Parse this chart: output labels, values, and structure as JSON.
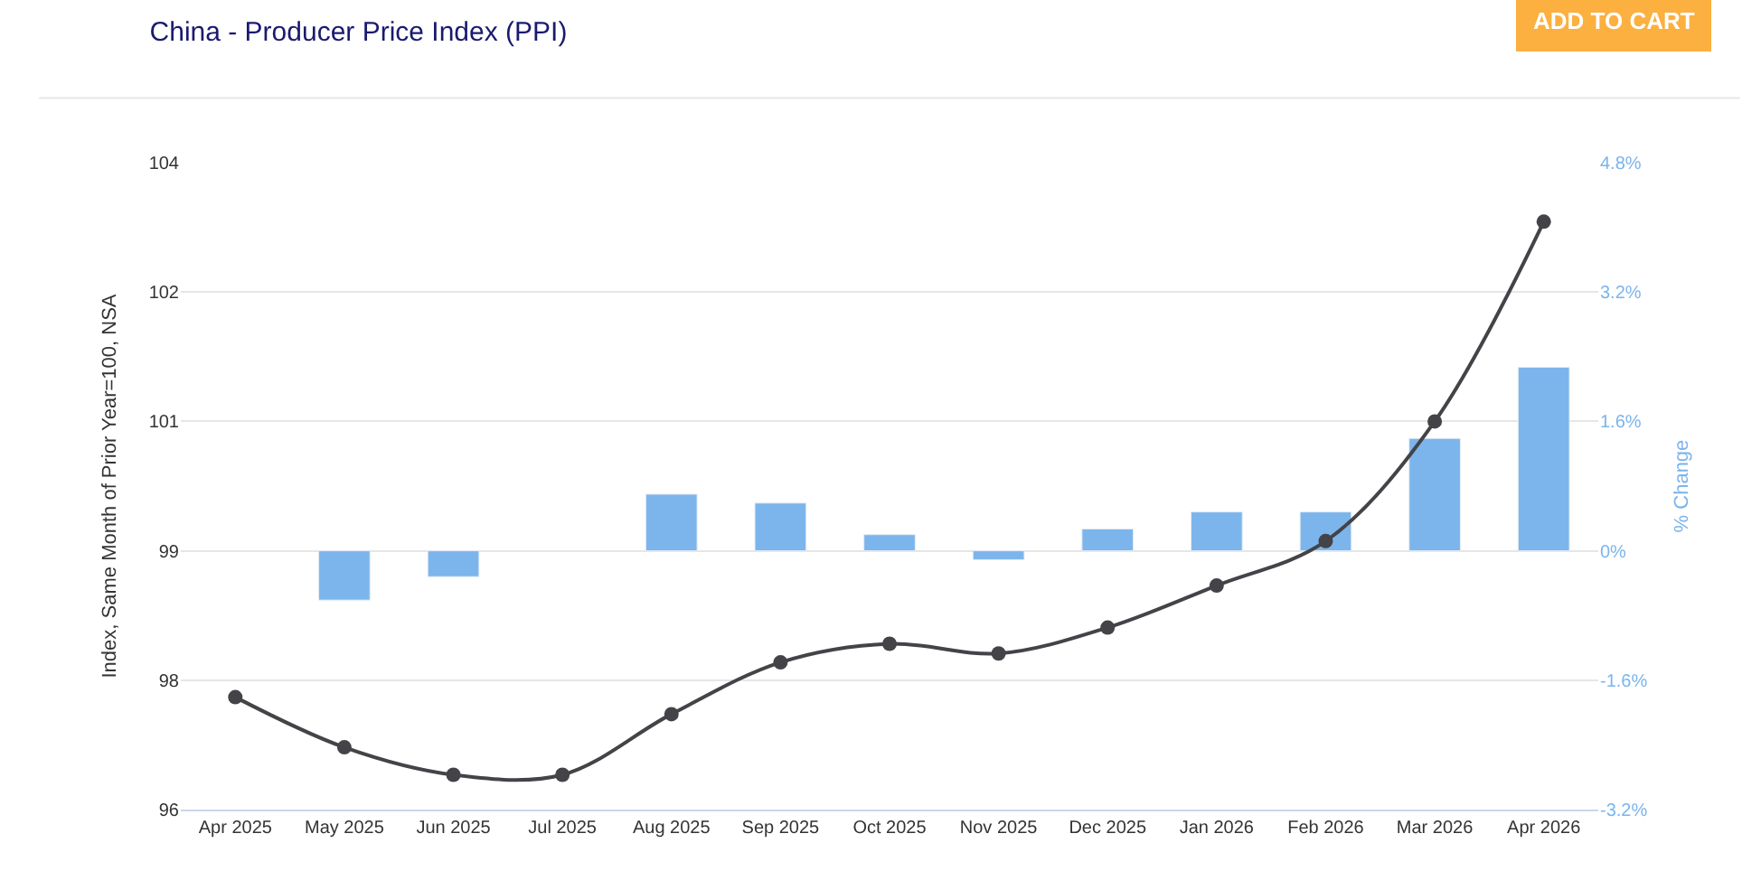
{
  "chart_data": {
    "type": "bar",
    "title": "China - Producer Price Index (PPI)",
    "ylabel": "Index, Same Month of Prior Year=100, NSA",
    "y2label": "% Change",
    "annotations": [
      "ADD TO CART"
    ],
    "categories": [
      "Apr 2025",
      "May 2025",
      "Jun 2025",
      "Jul 2025",
      "Aug 2025",
      "Sep 2025",
      "Oct 2025",
      "Nov 2025",
      "Dec 2025",
      "Jan 2026",
      "Feb 2026",
      "Mar 2026",
      "Apr 2026"
    ],
    "series": [
      {
        "axis": "y2",
        "color": "#7cb5ec",
        "values": [
          null,
          -0.61,
          -0.32,
          null,
          0.7,
          0.59,
          0.2,
          -0.11,
          0.27,
          0.48,
          0.48,
          1.39,
          2.27
        ]
      },
      {
        "type": "line",
        "axis": "y",
        "color": "#434348",
        "marker": "circle",
        "values": [
          97.39,
          96.77,
          96.43,
          96.43,
          97.18,
          97.82,
          98.05,
          97.93,
          98.25,
          98.77,
          99.32,
          100.8,
          103.27
        ]
      }
    ],
    "ylim": [
      96,
      104
    ],
    "yticks": [
      96,
      {
        "value": 97.6,
        "label": "98"
      },
      {
        "value": 99.2,
        "label": "99"
      },
      {
        "value": 100.8,
        "label": "101"
      },
      {
        "value": 102.4,
        "label": "102"
      },
      104
    ],
    "y2lim": [
      -3.2,
      4.8
    ],
    "y2ticks": [
      {
        "value": -3.2,
        "label": "-3.2%"
      },
      {
        "value": -1.6,
        "label": "-1.6%"
      },
      {
        "value": 0,
        "label": "0%"
      },
      {
        "value": 1.6,
        "label": "1.6%"
      },
      {
        "value": 3.2,
        "label": "3.2%"
      },
      {
        "value": 4.8,
        "label": "4.8%"
      }
    ],
    "grid": "y"
  }
}
